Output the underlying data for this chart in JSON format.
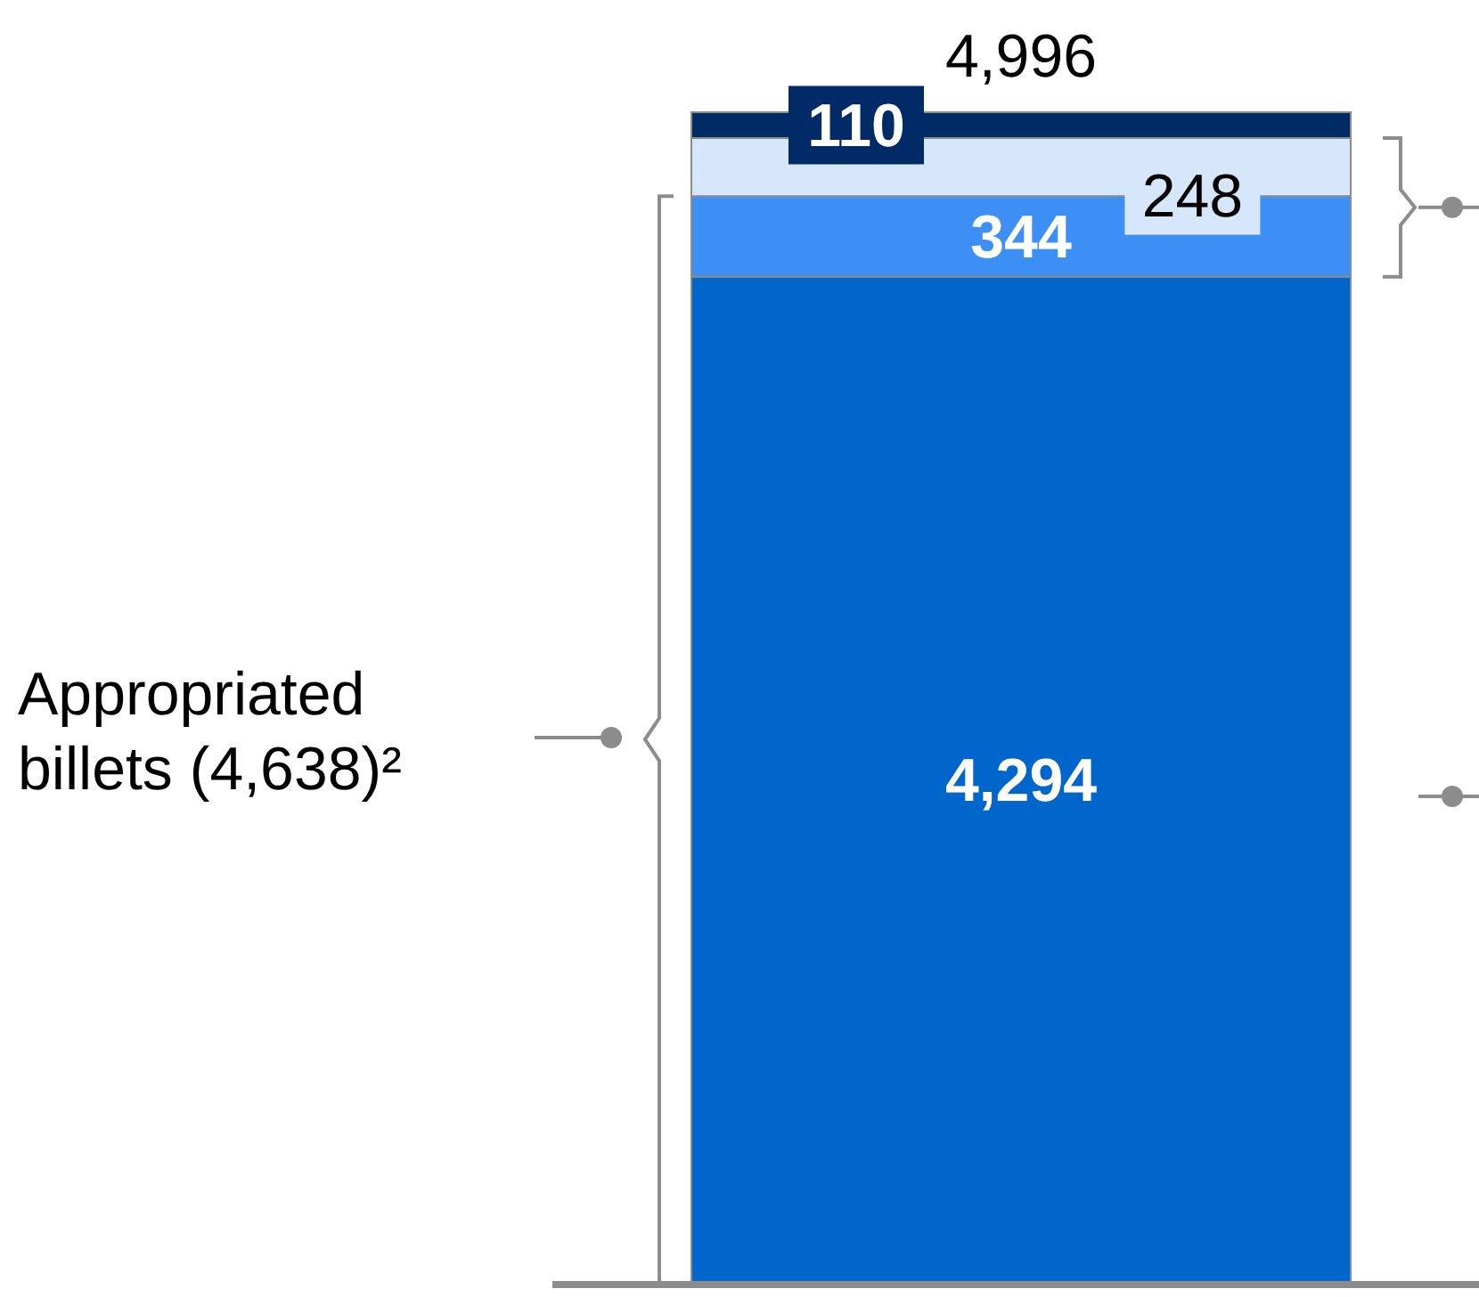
{
  "chart_data": {
    "type": "bar",
    "stacked": true,
    "categories": [
      null
    ],
    "series": [
      {
        "color": "#0066cc",
        "values": [
          4294
        ],
        "value_labels": [
          "4,294"
        ]
      },
      {
        "color": "#3d8ff5",
        "values": [
          344
        ],
        "value_labels": [
          "344"
        ]
      },
      {
        "color": "#d6e6fb",
        "values": [
          248
        ],
        "value_labels": [
          "248"
        ]
      },
      {
        "color": "#002b66",
        "values": [
          110
        ],
        "value_labels": [
          "110"
        ]
      }
    ],
    "totals": [
      "4,996"
    ],
    "annotations": [
      "Appropriated billets (4,638)²"
    ]
  }
}
